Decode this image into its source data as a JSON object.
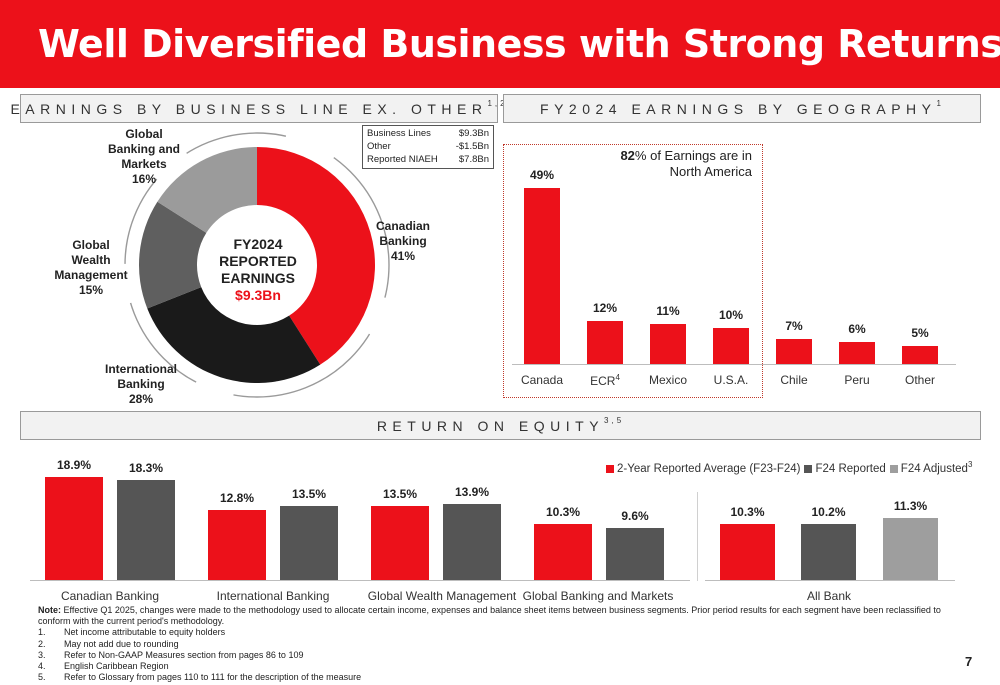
{
  "title": "Well Diversified Business with Strong Returns",
  "sections": {
    "business_line": {
      "title": "EARNINGS BY BUSINESS LINE EX. OTHER",
      "sup": "1,2"
    },
    "geography": {
      "title": "FY2024 EARNINGS BY GEOGRAPHY",
      "sup": "1"
    },
    "roe": {
      "title": "RETURN ON EQUITY",
      "sup": "3,5"
    }
  },
  "earnings_table": [
    {
      "label": "Business Lines",
      "value": "$9.3Bn"
    },
    {
      "label": "Other",
      "value": "-$1.5Bn"
    },
    {
      "label": "Reported NIAEH",
      "value": "$7.8Bn"
    }
  ],
  "donut": {
    "center_line1": "FY2024",
    "center_line2": "REPORTED",
    "center_line3": "EARNINGS",
    "center_value": "$9.3Bn",
    "labels": {
      "canadian": {
        "name": "Canadian\nBanking",
        "pct": "41%"
      },
      "international": {
        "name": "International\nBanking",
        "pct": "28%"
      },
      "gwm": {
        "name": "Global\nWealth\nManagement",
        "pct": "15%"
      },
      "gbm": {
        "name": "Global\nBanking and\nMarkets",
        "pct": "16%"
      }
    }
  },
  "geo_note": {
    "bold": "82",
    "text": "% of Earnings are in North America"
  },
  "roe_legend": [
    {
      "label": "2-Year Reported Average (F23-F24)",
      "color": "#ec111a"
    },
    {
      "label": "F24 Reported",
      "color": "#555555"
    },
    {
      "label": "F24 Adjusted",
      "color": "#9e9e9e",
      "sup": "3"
    }
  ],
  "chart_data": [
    {
      "type": "pie",
      "title": "",
      "categories": [
        "Canadian Banking",
        "International Banking",
        "Global Wealth Management",
        "Global Banking and Markets"
      ],
      "values": [
        41,
        28,
        15,
        16
      ],
      "colors": [
        "#ec111a",
        "#1a1a1a",
        "#5f5f5f",
        "#9b9b9b"
      ],
      "donut": true
    },
    {
      "type": "bar",
      "categories": [
        "Canada",
        "ECR",
        "Mexico",
        "U.S.A.",
        "Chile",
        "Peru",
        "Other"
      ],
      "category_sups": [
        "",
        "4",
        "",
        "",
        "",
        "",
        ""
      ],
      "values": [
        49,
        12,
        11,
        10,
        7,
        6,
        5
      ],
      "value_labels": [
        "49%",
        "12%",
        "11%",
        "10%",
        "7%",
        "6%",
        "5%"
      ],
      "color": "#ec111a",
      "ylim": [
        0,
        55
      ]
    },
    {
      "type": "bar",
      "categories": [
        "Canadian Banking",
        "International Banking",
        "Global Wealth Management",
        "Global Banking and Markets",
        "All Bank"
      ],
      "series": [
        {
          "name": "2-Year Reported Average (F23-F24)",
          "values": [
            18.9,
            12.8,
            13.5,
            10.3,
            10.3
          ],
          "labels": [
            "18.9%",
            "12.8%",
            "13.5%",
            "10.3%",
            "10.3%"
          ],
          "color": "#ec111a"
        },
        {
          "name": "F24 Reported",
          "values": [
            18.3,
            13.5,
            13.9,
            9.6,
            10.2
          ],
          "labels": [
            "18.3%",
            "13.5%",
            "13.9%",
            "9.6%",
            "10.2%"
          ],
          "color": "#555555"
        },
        {
          "name": "F24 Adjusted",
          "values": [
            null,
            null,
            null,
            null,
            11.3
          ],
          "labels": [
            "",
            "",
            "",
            "",
            "11.3%"
          ],
          "color": "#9e9e9e"
        }
      ],
      "ylim": [
        0,
        20
      ]
    }
  ],
  "notes": {
    "note_label": "Note:",
    "note_text": " Effective Q1 2025, changes were made to the methodology used to allocate certain income, expenses and balance sheet items between business segments. Prior period results for each segment have been reclassified to conform with the current period's methodology.",
    "footnotes": [
      {
        "n": "1.",
        "text": "Net income attributable to equity holders"
      },
      {
        "n": "2.",
        "text": "May not add due to rounding"
      },
      {
        "n": "3.",
        "text": "Refer to Non-GAAP Measures section from pages 86 to 109"
      },
      {
        "n": "4.",
        "text": "English Caribbean Region"
      },
      {
        "n": "5.",
        "text": "Refer to Glossary from pages 110 to 111 for the  description of the measure"
      }
    ]
  },
  "page_number": "7"
}
